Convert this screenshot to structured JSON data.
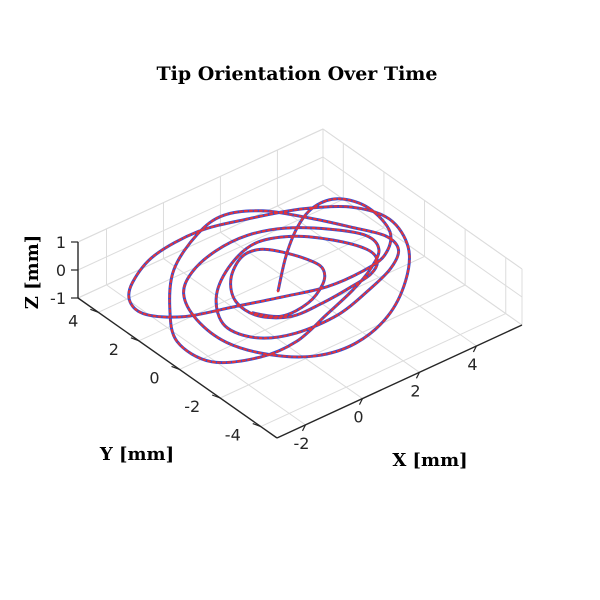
{
  "chart_data": {
    "type": "line3d",
    "title": "Tip Orientation Over Time",
    "xlabel": "X [mm]",
    "ylabel": "Y [mm]",
    "zlabel": "Z [mm]",
    "xlim": [
      -3,
      5.6
    ],
    "ylim": [
      -4.8,
      5.0
    ],
    "zlim": [
      -1,
      1
    ],
    "xticks": [
      -2,
      0,
      2,
      4
    ],
    "yticks": [
      -4,
      -2,
      0,
      2,
      4
    ],
    "zticks": [
      -1,
      0,
      1
    ],
    "grid": true,
    "series": [
      {
        "style": "solid",
        "color": "#2d4fd8",
        "x": [
          0.6,
          1.6,
          2.6,
          3.6,
          4.6,
          5.2,
          5.1,
          4.2,
          3.0,
          1.6,
          0.2,
          -1.2,
          -2.4,
          -2.9,
          -2.6,
          -1.8,
          -0.6,
          0.8,
          2.0,
          3.2,
          4.2,
          4.8,
          4.6,
          3.8,
          2.6,
          1.2,
          -0.2,
          -1.4,
          -2.2,
          -2.4,
          -2.0,
          -1.0,
          0.4,
          1.8,
          3.0,
          4.0,
          4.4,
          4.0,
          3.0,
          1.8,
          0.6,
          -0.6,
          -1.6,
          -2.6,
          -2.8,
          -2.2,
          -1.2,
          0.2,
          1.4,
          2.6,
          3.6,
          4.4,
          4.8,
          4.4,
          3.4,
          2.2,
          1.0,
          -0.2,
          -1.0,
          -1.4,
          -1.0,
          0.0,
          1.2,
          2.4,
          3.4,
          4.0,
          3.8,
          3.0,
          2.0,
          1.0,
          0.2,
          -0.4,
          -0.6,
          -0.2,
          0.6,
          1.4,
          2.0,
          2.4,
          2.2,
          1.6,
          0.8,
          0.0,
          -0.6
        ],
        "y": [
          0.2,
          1.2,
          2.0,
          2.6,
          2.8,
          2.2,
          1.0,
          0.0,
          -0.6,
          -0.8,
          -0.6,
          -0.2,
          0.6,
          1.8,
          3.0,
          4.0,
          4.6,
          4.4,
          3.6,
          2.6,
          1.6,
          0.6,
          -0.6,
          -1.6,
          -2.4,
          -2.8,
          -2.8,
          -2.2,
          -1.2,
          0.0,
          1.2,
          2.2,
          3.0,
          3.4,
          3.2,
          2.4,
          1.2,
          0.0,
          -1.0,
          -1.8,
          -2.2,
          -2.4,
          -2.0,
          -1.0,
          0.4,
          1.6,
          2.8,
          3.6,
          4.0,
          3.8,
          3.0,
          2.0,
          0.8,
          -0.4,
          -1.4,
          -2.0,
          -2.2,
          -1.8,
          -1.0,
          0.0,
          1.0,
          1.8,
          2.2,
          2.0,
          1.4,
          0.6,
          -0.2,
          -1.0,
          -1.4,
          -1.4,
          -1.0,
          -0.2,
          0.6,
          1.4,
          2.0,
          2.2,
          1.8,
          1.0,
          0.2,
          -0.6,
          -1.0,
          -0.8,
          -0.2
        ],
        "z": [
          0.0,
          0.3,
          0.5,
          0.4,
          0.1,
          -0.2,
          -0.4,
          -0.3,
          0.0,
          0.2,
          0.4,
          0.5,
          0.3,
          0.0,
          -0.3,
          -0.5,
          -0.4,
          -0.1,
          0.2,
          0.5,
          0.6,
          0.4,
          0.1,
          -0.2,
          -0.5,
          -0.6,
          -0.4,
          -0.1,
          0.2,
          0.5,
          0.6,
          0.4,
          0.1,
          -0.2,
          -0.4,
          -0.5,
          -0.3,
          0.0,
          0.3,
          0.5,
          0.4,
          0.1,
          -0.2,
          -0.4,
          -0.3,
          0.0,
          0.3,
          0.5,
          0.4,
          0.1,
          -0.2,
          -0.4,
          -0.3,
          0.0,
          0.3,
          0.4,
          0.2,
          -0.1,
          -0.3,
          -0.2,
          0.1,
          0.3,
          0.4,
          0.2,
          -0.1,
          -0.3,
          -0.2,
          0.1,
          0.3,
          0.2,
          -0.1,
          -0.2,
          0.0,
          0.2,
          0.3,
          0.1,
          -0.1,
          -0.2,
          0.0,
          0.2,
          0.1,
          -0.1,
          0.0
        ]
      },
      {
        "style": "dotted",
        "color": "#e0343b",
        "same_as_previous": true
      }
    ]
  }
}
